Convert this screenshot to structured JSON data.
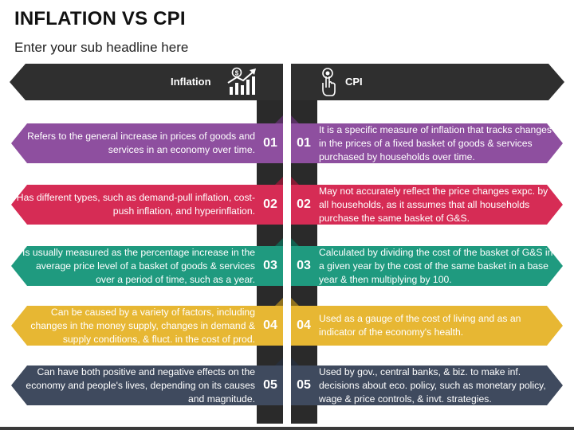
{
  "header": {
    "title": "INFLATION VS CPI",
    "subtitle": "Enter your sub headline here"
  },
  "columns": {
    "left": {
      "label": "Inflation",
      "icon": "growth-chart-icon"
    },
    "right": {
      "label": "CPI",
      "icon": "touch-hand-icon"
    }
  },
  "colors": {
    "header": "#2f2f2f",
    "row1": "#8e4f9f",
    "row2": "#d62c55",
    "row3": "#1f9a7f",
    "row4": "#e7b733",
    "row5": "#3f4a5e"
  },
  "rows": [
    {
      "num": "01",
      "left_text": "Refers to the general increase in prices of goods and services in an economy over time.",
      "right_text": "It is a specific measure of inflation that tracks changes in the prices of a fixed basket of goods & services purchased by households over time."
    },
    {
      "num": "02",
      "left_text": "Has different types, such as demand-pull inflation, cost-push inflation, and hyperinflation.",
      "right_text": "May not accurately reflect the price changes expc. by all households, as it assumes that all households purchase the same basket of G&S."
    },
    {
      "num": "03",
      "left_text": "Is usually measured as the percentage increase in the average price level of a basket of goods & services over a period of time, such as a year.",
      "right_text": "Calculated by dividing the cost of the basket of G&S in a given year by the cost of the same basket in a base year & then multiplying by 100."
    },
    {
      "num": "04",
      "left_text": "Can be caused by a variety of factors, including changes in the money supply, changes in demand & supply conditions, & fluct. in the cost of prod.",
      "right_text": "Used as a gauge of the cost of living and as an indicator of the economy's health."
    },
    {
      "num": "05",
      "left_text": "Can have both positive and negative effects on the economy and people's lives, depending on its causes and magnitude.",
      "right_text": "Used by gov., central banks, & biz. to make inf. decisions about eco. policy, such as monetary policy, wage & price controls, & invt. strategies."
    }
  ]
}
